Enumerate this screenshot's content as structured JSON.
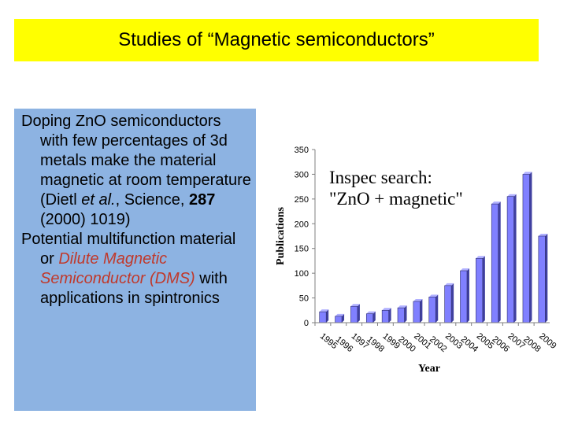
{
  "slide": {
    "title": "Studies of “Magnetic semiconductors”",
    "para1": {
      "lead": "Doping Zn",
      "O": "O",
      "rest": " semiconductors with few percentages of 3d metals make the material magnetic at room temperature (Dietl ",
      "etal": "et al.",
      "journal": ", Science, ",
      "volume": "287",
      "tail": " (2000) 1019)"
    },
    "para2": {
      "lead": "Potential multifunction material or ",
      "dms": "Dilute Magnetic Semiconductor (DMS)",
      "tail": " with applications in spintronics"
    }
  },
  "colors": {
    "title_bg": "#ffff00",
    "panel_bg": "#8db3e2",
    "accent_red": "#c0392b",
    "bar": "#8080ff"
  },
  "chart_data": {
    "type": "bar",
    "annotation_line1": "Inspec search:",
    "annotation_line2": "\"ZnO + magnetic\"",
    "xlabel": "Year",
    "ylabel": "Publications",
    "ylim": [
      0,
      350
    ],
    "yticks": [
      0,
      50,
      100,
      150,
      200,
      250,
      300,
      350
    ],
    "categories": [
      "1995",
      "1996",
      "1997",
      "1998",
      "1999",
      "2000",
      "2001",
      "2002",
      "2003",
      "2004",
      "2005",
      "2006",
      "2007",
      "2008",
      "2009"
    ],
    "values": [
      22,
      13,
      33,
      18,
      25,
      30,
      43,
      52,
      75,
      105,
      130,
      240,
      255,
      300,
      175
    ],
    "grid": false,
    "legend": "none"
  }
}
